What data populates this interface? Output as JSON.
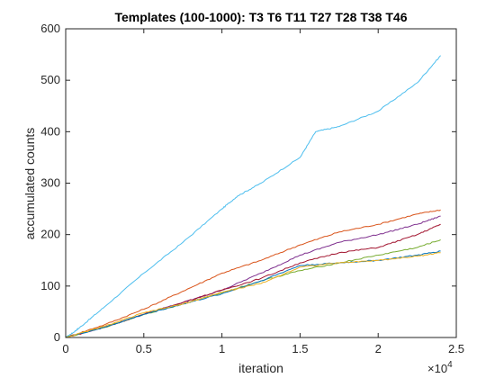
{
  "chart_data": {
    "type": "line",
    "title": "Templates (100-1000): T3 T6 T11 T27 T28 T38 T46",
    "xlabel": "iteration",
    "ylabel": "accumulated counts",
    "x_exponent_base": "×10",
    "x_exponent_power": "4",
    "xlim": [
      0,
      2.5
    ],
    "ylim": [
      0,
      600
    ],
    "xticks": [
      0,
      0.5,
      1,
      1.5,
      2,
      2.5
    ],
    "xtick_labels": [
      "0",
      "0.5",
      "1",
      "1.5",
      "2",
      "2.5"
    ],
    "yticks": [
      0,
      100,
      200,
      300,
      400,
      500,
      600
    ],
    "ytick_labels": [
      "0",
      "100",
      "200",
      "300",
      "400",
      "500",
      "600"
    ],
    "grid": false,
    "series": [
      {
        "color": "#4dbeee",
        "x": [
          0,
          0.05,
          0.1,
          0.25,
          0.5,
          0.75,
          1.0,
          1.1,
          1.25,
          1.5,
          1.6,
          1.75,
          2.0,
          2.25,
          2.4
        ],
        "y": [
          0,
          10,
          22,
          60,
          125,
          185,
          250,
          275,
          300,
          350,
          400,
          410,
          440,
          495,
          548
        ]
      },
      {
        "color": "#d95319",
        "x": [
          0,
          0.25,
          0.5,
          0.75,
          1.0,
          1.25,
          1.5,
          1.75,
          2.0,
          2.25,
          2.4
        ],
        "y": [
          0,
          25,
          55,
          90,
          125,
          150,
          180,
          205,
          220,
          240,
          248
        ]
      },
      {
        "color": "#7e2f8e",
        "x": [
          0,
          0.25,
          0.5,
          0.75,
          1.0,
          1.25,
          1.5,
          1.75,
          2.0,
          2.25,
          2.4
        ],
        "y": [
          0,
          20,
          45,
          68,
          92,
          125,
          160,
          185,
          200,
          220,
          236
        ]
      },
      {
        "color": "#a2142f",
        "x": [
          0,
          0.25,
          0.5,
          0.75,
          1.0,
          1.25,
          1.5,
          1.75,
          2.0,
          2.25,
          2.4
        ],
        "y": [
          0,
          20,
          45,
          68,
          92,
          115,
          145,
          165,
          175,
          200,
          220
        ]
      },
      {
        "color": "#77ac30",
        "x": [
          0,
          0.25,
          0.5,
          0.75,
          1.0,
          1.25,
          1.5,
          1.75,
          2.0,
          2.25,
          2.4
        ],
        "y": [
          0,
          20,
          45,
          65,
          87,
          110,
          130,
          145,
          160,
          175,
          190
        ]
      },
      {
        "color": "#0072bd",
        "x": [
          0,
          0.25,
          0.5,
          0.75,
          1.0,
          1.25,
          1.5,
          1.75,
          2.0,
          2.25,
          2.4
        ],
        "y": [
          0,
          20,
          45,
          65,
          85,
          110,
          140,
          145,
          150,
          160,
          168
        ]
      },
      {
        "color": "#edb120",
        "x": [
          0,
          0.25,
          0.5,
          0.75,
          1.0,
          1.25,
          1.5,
          1.75,
          2.0,
          2.25,
          2.4
        ],
        "y": [
          0,
          22,
          48,
          65,
          88,
          105,
          137,
          145,
          150,
          158,
          165
        ]
      }
    ]
  }
}
